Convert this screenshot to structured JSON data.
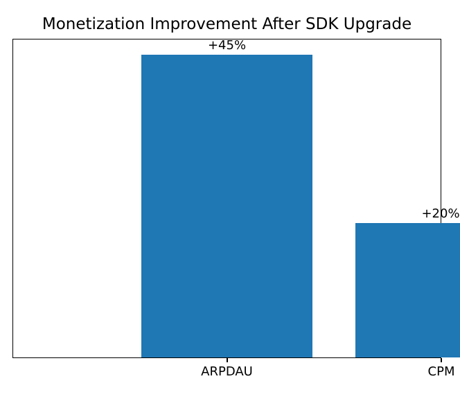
{
  "chart_data": {
    "type": "bar",
    "title": "Monetization Improvement After SDK Upgrade",
    "categories": [
      "ARPDAU",
      "CPM"
    ],
    "values": [
      45,
      20
    ],
    "bar_labels": [
      "+45%",
      "+20%"
    ],
    "xlabel": "",
    "ylabel": "",
    "xlim": [
      -0.5,
      1.5
    ],
    "ylim": [
      0,
      47.25
    ],
    "bar_width": 0.8,
    "grid": false,
    "legend": false,
    "y_axis_ticks": "hidden",
    "bar_color": "#1f77b4",
    "frame_color": "#000000",
    "text_color": "#000000",
    "background_color": "#ffffff"
  }
}
